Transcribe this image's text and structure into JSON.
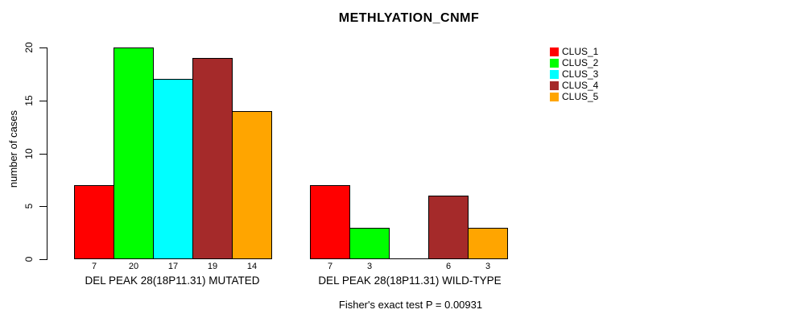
{
  "title": "METHLYATION_CNMF",
  "footnote": "Fisher's exact test P = 0.00931",
  "y_axis": {
    "label": "number of cases",
    "ticks": [
      0,
      5,
      10,
      15,
      20
    ]
  },
  "legend": {
    "position": "right",
    "items": [
      {
        "label": "CLUS_1",
        "color": "#FF0000"
      },
      {
        "label": "CLUS_2",
        "color": "#00FF00"
      },
      {
        "label": "CLUS_3",
        "color": "#00FFFF"
      },
      {
        "label": "CLUS_4",
        "color": "#A52A2A"
      },
      {
        "label": "CLUS_5",
        "color": "#FFA500"
      }
    ]
  },
  "colors": {
    "background": "#FFFFFF",
    "axis": "#000000",
    "bar_border": "#000000"
  },
  "chart_data": {
    "type": "bar",
    "title": "METHLYATION_CNMF",
    "xlabel": "",
    "ylabel": "number of cases",
    "ylim": [
      0,
      20
    ],
    "yticks": [
      0,
      5,
      10,
      15,
      20
    ],
    "grid": false,
    "legend_position": "right",
    "categories": [
      "DEL PEAK 28(18P11.31) MUTATED",
      "DEL PEAK 28(18P11.31) WILD-TYPE"
    ],
    "series": [
      {
        "name": "CLUS_1",
        "color": "#FF0000",
        "values": [
          7,
          7
        ]
      },
      {
        "name": "CLUS_2",
        "color": "#00FF00",
        "values": [
          20,
          3
        ]
      },
      {
        "name": "CLUS_3",
        "color": "#00FFFF",
        "values": [
          17,
          0
        ]
      },
      {
        "name": "CLUS_4",
        "color": "#A52A2A",
        "values": [
          19,
          6
        ]
      },
      {
        "name": "CLUS_5",
        "color": "#FFA500",
        "values": [
          14,
          3
        ]
      }
    ],
    "bar_value_labels_shown_when": "value > 0",
    "annotation": "Fisher's exact test P = 0.00931"
  }
}
